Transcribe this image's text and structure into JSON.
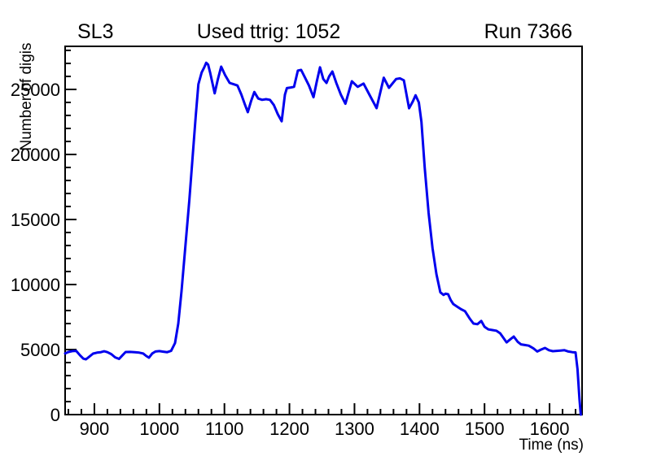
{
  "page": {
    "background": "#ffffff"
  },
  "header": {
    "left_title": "SL3",
    "center_title": "Used ttrig: 1052",
    "right_title": "Run 7366"
  },
  "chart_data": {
    "type": "line",
    "title": "Used ttrig: 1052",
    "xlabel": "Time (ns)",
    "ylabel": "Number of digis",
    "xlim": [
      855,
      1650
    ],
    "ylim": [
      0,
      28312
    ],
    "grid": false,
    "legend": false,
    "line_color": "#0000ee",
    "axis_color": "#000000",
    "x_major_ticks": [
      900,
      1000,
      1100,
      1200,
      1300,
      1400,
      1500,
      1600
    ],
    "x_tick_labels": [
      "900",
      "1000",
      "1100",
      "1200",
      "1300",
      "1400",
      "1500",
      "1600"
    ],
    "x_minor_step": 20,
    "y_major_ticks": [
      0,
      5000,
      10000,
      15000,
      20000,
      25000
    ],
    "y_tick_labels": [
      "0",
      "5000",
      "10000",
      "15000",
      "20000",
      "25000"
    ],
    "y_minor_step": 1000,
    "series": [
      {
        "name": "number-of-digis-vs-time",
        "points": [
          [
            855,
            4700
          ],
          [
            860,
            4810
          ],
          [
            866,
            4880
          ],
          [
            872,
            4900
          ],
          [
            878,
            4550
          ],
          [
            883,
            4300
          ],
          [
            887,
            4250
          ],
          [
            892,
            4450
          ],
          [
            898,
            4690
          ],
          [
            904,
            4760
          ],
          [
            910,
            4800
          ],
          [
            915,
            4870
          ],
          [
            920,
            4800
          ],
          [
            926,
            4650
          ],
          [
            932,
            4400
          ],
          [
            938,
            4280
          ],
          [
            943,
            4550
          ],
          [
            948,
            4810
          ],
          [
            955,
            4820
          ],
          [
            962,
            4800
          ],
          [
            969,
            4760
          ],
          [
            975,
            4700
          ],
          [
            980,
            4500
          ],
          [
            984,
            4380
          ],
          [
            989,
            4700
          ],
          [
            994,
            4850
          ],
          [
            1000,
            4880
          ],
          [
            1006,
            4840
          ],
          [
            1012,
            4800
          ],
          [
            1018,
            4900
          ],
          [
            1024,
            5500
          ],
          [
            1029,
            7000
          ],
          [
            1034,
            9500
          ],
          [
            1040,
            13000
          ],
          [
            1046,
            16500
          ],
          [
            1051,
            19800
          ],
          [
            1056,
            23000
          ],
          [
            1060,
            25400
          ],
          [
            1065,
            26300
          ],
          [
            1069,
            26700
          ],
          [
            1072,
            27050
          ],
          [
            1075,
            26900
          ],
          [
            1078,
            26300
          ],
          [
            1085,
            24700
          ],
          [
            1090,
            25800
          ],
          [
            1095,
            26750
          ],
          [
            1101,
            26100
          ],
          [
            1108,
            25500
          ],
          [
            1114,
            25400
          ],
          [
            1120,
            25300
          ],
          [
            1126,
            24600
          ],
          [
            1131,
            23900
          ],
          [
            1136,
            23250
          ],
          [
            1141,
            24100
          ],
          [
            1146,
            24800
          ],
          [
            1152,
            24300
          ],
          [
            1158,
            24200
          ],
          [
            1164,
            24250
          ],
          [
            1170,
            24200
          ],
          [
            1176,
            23800
          ],
          [
            1182,
            23100
          ],
          [
            1188,
            22550
          ],
          [
            1193,
            24600
          ],
          [
            1196,
            25100
          ],
          [
            1202,
            25150
          ],
          [
            1207,
            25200
          ],
          [
            1213,
            26450
          ],
          [
            1218,
            26500
          ],
          [
            1224,
            25900
          ],
          [
            1230,
            25300
          ],
          [
            1237,
            24400
          ],
          [
            1242,
            25600
          ],
          [
            1247,
            26700
          ],
          [
            1252,
            25800
          ],
          [
            1257,
            25500
          ],
          [
            1261,
            26000
          ],
          [
            1266,
            26375
          ],
          [
            1272,
            25500
          ],
          [
            1279,
            24600
          ],
          [
            1286,
            23900
          ],
          [
            1296,
            25625
          ],
          [
            1305,
            25200
          ],
          [
            1314,
            25450
          ],
          [
            1324,
            24500
          ],
          [
            1334,
            23560
          ],
          [
            1345,
            25900
          ],
          [
            1353,
            25125
          ],
          [
            1364,
            25800
          ],
          [
            1370,
            25850
          ],
          [
            1376,
            25700
          ],
          [
            1384,
            23550
          ],
          [
            1390,
            24100
          ],
          [
            1394,
            24550
          ],
          [
            1399,
            24000
          ],
          [
            1403,
            22500
          ],
          [
            1408,
            19000
          ],
          [
            1414,
            15500
          ],
          [
            1420,
            12800
          ],
          [
            1426,
            10800
          ],
          [
            1432,
            9400
          ],
          [
            1437,
            9200
          ],
          [
            1440,
            9300
          ],
          [
            1444,
            9250
          ],
          [
            1448,
            8800
          ],
          [
            1452,
            8500
          ],
          [
            1458,
            8300
          ],
          [
            1464,
            8100
          ],
          [
            1470,
            7950
          ],
          [
            1477,
            7400
          ],
          [
            1483,
            7000
          ],
          [
            1489,
            6950
          ],
          [
            1495,
            7200
          ],
          [
            1500,
            6750
          ],
          [
            1506,
            6550
          ],
          [
            1512,
            6500
          ],
          [
            1518,
            6450
          ],
          [
            1524,
            6250
          ],
          [
            1529,
            5900
          ],
          [
            1534,
            5550
          ],
          [
            1540,
            5800
          ],
          [
            1545,
            6000
          ],
          [
            1551,
            5600
          ],
          [
            1556,
            5400
          ],
          [
            1562,
            5350
          ],
          [
            1568,
            5300
          ],
          [
            1575,
            5100
          ],
          [
            1581,
            4850
          ],
          [
            1587,
            5000
          ],
          [
            1593,
            5125
          ],
          [
            1599,
            4950
          ],
          [
            1605,
            4875
          ],
          [
            1611,
            4900
          ],
          [
            1617,
            4925
          ],
          [
            1623,
            4950
          ],
          [
            1629,
            4850
          ],
          [
            1635,
            4800
          ],
          [
            1640,
            4780
          ],
          [
            1643,
            3500
          ],
          [
            1646,
            1200
          ],
          [
            1648,
            0
          ]
        ]
      }
    ]
  }
}
